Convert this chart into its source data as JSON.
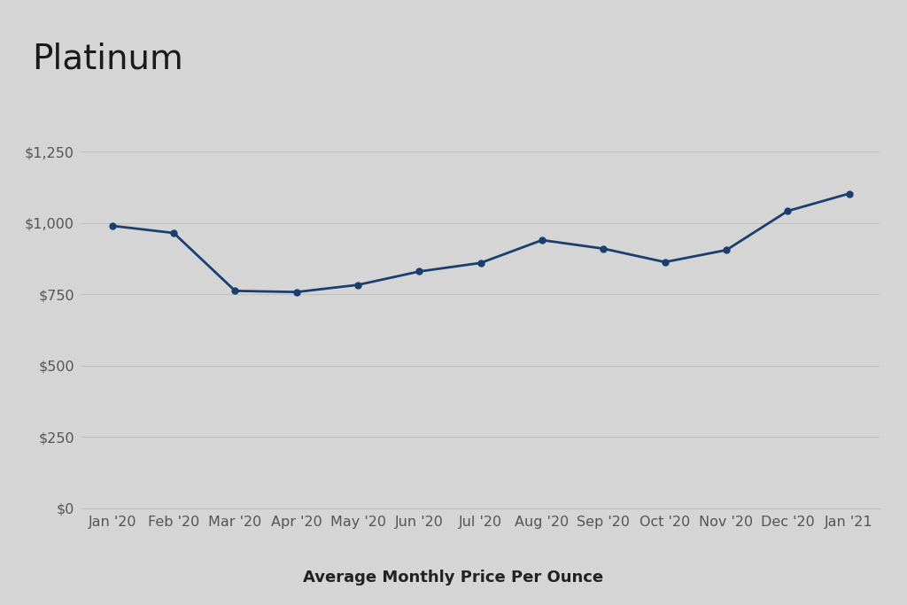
{
  "title": "Platinum",
  "xlabel": "Average Monthly Price Per Ounce",
  "background_color": "#d5d5d5",
  "line_color": "#1a3f6f",
  "marker_color": "#1a3f6f",
  "title_fontsize": 28,
  "xlabel_fontsize": 13,
  "tick_fontsize": 11.5,
  "labels": [
    "Jan '20",
    "Feb '20",
    "Mar '20",
    "Apr '20",
    "May '20",
    "Jun '20",
    "Jul '20",
    "Aug '20",
    "Sep '20",
    "Oct '20",
    "Nov '20",
    "Dec '20",
    "Jan '21"
  ],
  "values": [
    990,
    965,
    762,
    758,
    783,
    830,
    860,
    940,
    910,
    863,
    905,
    1042,
    1103
  ],
  "ylim": [
    0,
    1400
  ],
  "yticks": [
    0,
    250,
    500,
    750,
    1000,
    1250
  ],
  "ytick_labels": [
    "$0",
    "$250",
    "$500",
    "$750",
    "$1,000",
    "$1,250"
  ],
  "grid_color": "#c0c0c0",
  "text_color": "#555555"
}
